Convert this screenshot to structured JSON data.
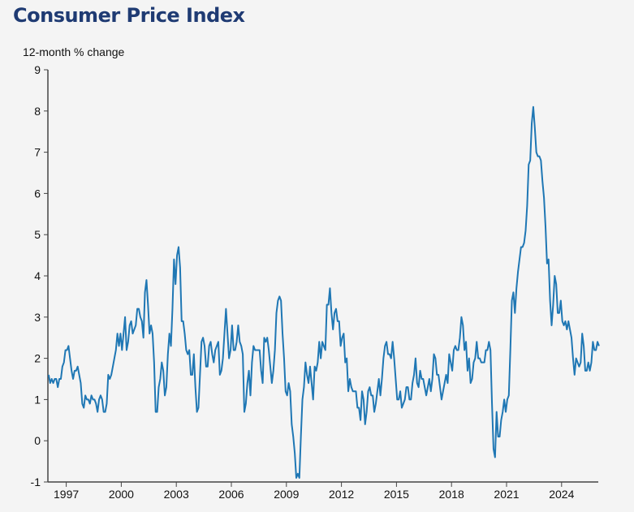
{
  "chart_data": {
    "type": "line",
    "title": "Consumer Price Index",
    "ylabel": "12-month % change",
    "xlabel": "",
    "ylim": [
      -1,
      9
    ],
    "xlim": [
      1996.0,
      2026.0
    ],
    "yticks": [
      "9",
      "8",
      "7",
      "6",
      "5",
      "4",
      "3",
      "2",
      "1",
      "0",
      "-1"
    ],
    "xticks": [
      "1997",
      "2000",
      "2003",
      "2006",
      "2009",
      "2012",
      "2015",
      "2018",
      "2021",
      "2024"
    ],
    "start": "1996-01",
    "frequency": "monthly",
    "line_color": "#1f77b4",
    "series": [
      {
        "name": "12-month % change",
        "values": [
          1.6,
          1.4,
          1.5,
          1.4,
          1.5,
          1.5,
          1.3,
          1.5,
          1.5,
          1.8,
          1.9,
          2.2,
          2.2,
          2.3,
          2.0,
          1.7,
          1.5,
          1.7,
          1.7,
          1.8,
          1.6,
          1.4,
          0.9,
          0.8,
          1.1,
          1.0,
          1.0,
          0.9,
          1.1,
          1.0,
          1.0,
          0.9,
          0.7,
          1.0,
          1.1,
          1.0,
          0.7,
          0.7,
          0.9,
          1.6,
          1.5,
          1.6,
          1.8,
          2.0,
          2.2,
          2.6,
          2.3,
          2.6,
          2.2,
          2.6,
          3.0,
          2.2,
          2.4,
          2.8,
          2.9,
          2.6,
          2.7,
          2.8,
          3.2,
          3.2,
          3.0,
          2.9,
          2.5,
          3.6,
          3.9,
          3.3,
          2.6,
          2.8,
          2.6,
          1.9,
          0.7,
          0.7,
          1.3,
          1.5,
          1.9,
          1.7,
          1.1,
          1.3,
          2.1,
          2.6,
          2.3,
          3.2,
          4.4,
          3.8,
          4.5,
          4.7,
          4.2,
          2.9,
          2.9,
          2.6,
          2.2,
          2.1,
          2.2,
          1.6,
          1.6,
          2.1,
          1.3,
          0.7,
          0.8,
          1.6,
          2.4,
          2.5,
          2.3,
          1.8,
          1.8,
          2.3,
          2.4,
          2.1,
          1.9,
          2.2,
          2.3,
          2.4,
          1.6,
          1.7,
          2.0,
          2.6,
          3.2,
          2.6,
          2.0,
          2.2,
          2.8,
          2.2,
          2.2,
          2.4,
          2.8,
          2.4,
          2.3,
          2.1,
          0.7,
          0.9,
          1.4,
          1.7,
          1.1,
          1.9,
          2.3,
          2.2,
          2.2,
          2.2,
          2.2,
          1.7,
          1.4,
          2.5,
          2.4,
          2.5,
          2.2,
          1.8,
          1.4,
          1.7,
          2.2,
          3.1,
          3.4,
          3.5,
          3.4,
          2.6,
          2.0,
          1.2,
          1.1,
          1.4,
          1.2,
          0.4,
          0.1,
          -0.3,
          -0.9,
          -0.8,
          -0.9,
          0.1,
          1.0,
          1.3,
          1.9,
          1.6,
          1.4,
          1.8,
          1.4,
          1.0,
          1.8,
          1.7,
          1.9,
          2.4,
          2.0,
          2.4,
          2.3,
          2.2,
          3.3,
          3.3,
          3.7,
          3.1,
          2.7,
          3.1,
          3.2,
          2.9,
          2.9,
          2.3,
          2.5,
          2.6,
          1.9,
          2.0,
          1.2,
          1.5,
          1.3,
          1.2,
          1.2,
          1.2,
          0.8,
          0.8,
          0.5,
          1.2,
          1.0,
          0.4,
          0.7,
          1.2,
          1.3,
          1.1,
          1.1,
          0.7,
          0.9,
          1.2,
          1.5,
          1.1,
          1.5,
          2.0,
          2.3,
          2.4,
          2.1,
          2.1,
          2.0,
          2.4,
          2.0,
          1.5,
          1.0,
          1.0,
          1.2,
          0.8,
          0.9,
          1.0,
          1.3,
          1.3,
          1.0,
          1.0,
          1.4,
          1.6,
          2.0,
          1.4,
          1.3,
          1.7,
          1.5,
          1.5,
          1.3,
          1.1,
          1.3,
          1.5,
          1.2,
          1.5,
          2.1,
          2.0,
          1.6,
          1.6,
          1.3,
          1.0,
          1.2,
          1.4,
          1.6,
          1.4,
          2.1,
          1.9,
          1.7,
          2.2,
          2.3,
          2.2,
          2.2,
          2.5,
          3.0,
          2.8,
          2.2,
          2.4,
          1.7,
          2.0,
          1.4,
          1.5,
          1.9,
          2.0,
          2.4,
          2.0,
          2.0,
          1.9,
          1.9,
          1.9,
          2.2,
          2.2,
          2.4,
          2.2,
          0.9,
          -0.2,
          -0.4,
          0.7,
          0.1,
          0.1,
          0.5,
          0.7,
          1.0,
          0.7,
          1.0,
          1.1,
          2.2,
          3.4,
          3.6,
          3.1,
          3.7,
          4.1,
          4.4,
          4.7,
          4.7,
          4.8,
          5.1,
          5.7,
          6.7,
          6.8,
          7.7,
          8.1,
          7.6,
          7.0,
          6.9,
          6.9,
          6.8,
          6.3,
          5.9,
          5.2,
          4.3,
          4.4,
          3.4,
          2.8,
          3.3,
          4.0,
          3.8,
          3.1,
          3.1,
          3.4,
          2.9,
          2.8,
          2.9,
          2.7,
          2.9,
          2.7,
          2.5,
          2.0,
          1.6,
          2.0,
          1.9,
          1.8,
          1.9,
          2.6,
          2.3,
          1.7,
          1.7,
          1.9,
          1.7,
          1.9,
          2.4,
          2.2,
          2.2,
          2.4,
          2.3
        ]
      }
    ]
  }
}
